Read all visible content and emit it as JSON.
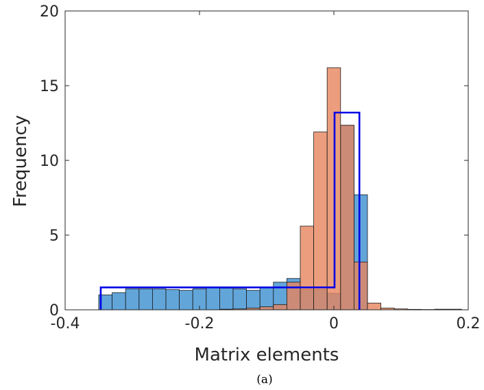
{
  "chart_data": {
    "type": "bar",
    "title": "",
    "xlabel": "Matrix elements",
    "ylabel": "Frequency",
    "xlim": [
      -0.4,
      0.2
    ],
    "ylim": [
      0,
      20
    ],
    "xticks": [
      -0.4,
      -0.2,
      0,
      0.2
    ],
    "xtick_labels": [
      "-0.4",
      "-0.2",
      "0",
      "0.2"
    ],
    "yticks": [
      0,
      5,
      10,
      15,
      20
    ],
    "ytick_labels": [
      "0",
      "5",
      "10",
      "15",
      "20"
    ],
    "grid": false,
    "series": [
      {
        "kind": "histogram",
        "color": "#3b8fd0",
        "opacity": 0.8,
        "bin_width": 0.02,
        "bins": [
          {
            "x0": -0.35,
            "value": 1.0
          },
          {
            "x0": -0.33,
            "value": 1.15
          },
          {
            "x0": -0.31,
            "value": 1.4
          },
          {
            "x0": -0.29,
            "value": 1.4
          },
          {
            "x0": -0.27,
            "value": 1.4
          },
          {
            "x0": -0.25,
            "value": 1.35
          },
          {
            "x0": -0.23,
            "value": 1.3
          },
          {
            "x0": -0.21,
            "value": 1.4
          },
          {
            "x0": -0.19,
            "value": 1.5
          },
          {
            "x0": -0.17,
            "value": 1.45
          },
          {
            "x0": -0.15,
            "value": 1.4
          },
          {
            "x0": -0.13,
            "value": 1.3
          },
          {
            "x0": -0.11,
            "value": 1.5
          },
          {
            "x0": -0.09,
            "value": 1.85
          },
          {
            "x0": -0.07,
            "value": 2.1
          },
          {
            "x0": -0.05,
            "value": 1.35
          },
          {
            "x0": -0.03,
            "value": 1.35
          },
          {
            "x0": -0.01,
            "value": 1.1
          },
          {
            "x0": 0.01,
            "value": 12.35
          },
          {
            "x0": 0.03,
            "value": 7.7
          }
        ]
      },
      {
        "kind": "histogram",
        "color": "#e6855e",
        "opacity": 0.8,
        "bin_width": 0.02,
        "bins": [
          {
            "x0": -0.17,
            "value": 0.04
          },
          {
            "x0": -0.15,
            "value": 0.06
          },
          {
            "x0": -0.13,
            "value": 0.12
          },
          {
            "x0": -0.11,
            "value": 0.2
          },
          {
            "x0": -0.09,
            "value": 0.35
          },
          {
            "x0": -0.07,
            "value": 1.85
          },
          {
            "x0": -0.05,
            "value": 5.6
          },
          {
            "x0": -0.03,
            "value": 11.9
          },
          {
            "x0": -0.01,
            "value": 16.2
          },
          {
            "x0": 0.01,
            "value": 12.35
          },
          {
            "x0": 0.03,
            "value": 3.2
          },
          {
            "x0": 0.05,
            "value": 0.45
          },
          {
            "x0": 0.07,
            "value": 0.12
          },
          {
            "x0": 0.09,
            "value": 0.06
          },
          {
            "x0": 0.11,
            "value": 0.03
          },
          {
            "x0": 0.13,
            "value": 0.02
          },
          {
            "x0": 0.15,
            "value": 0.04
          },
          {
            "x0": 0.17,
            "value": 0.04
          }
        ]
      },
      {
        "kind": "step",
        "color": "#0000e6",
        "points": [
          [
            -0.347,
            0
          ],
          [
            -0.347,
            1.5
          ],
          [
            0.001,
            1.5
          ],
          [
            0.001,
            13.2
          ],
          [
            0.038,
            13.2
          ],
          [
            0.038,
            0
          ]
        ]
      }
    ],
    "caption": "(a)"
  }
}
